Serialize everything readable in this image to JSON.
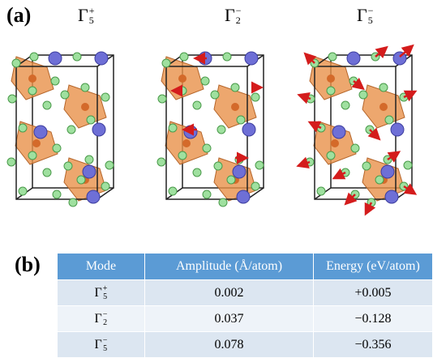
{
  "panel_a": {
    "label": "(a)",
    "modes": [
      {
        "symbol": "Γ",
        "sub": "5",
        "sup": "+"
      },
      {
        "symbol": "Γ",
        "sub": "2",
        "sup": "−"
      },
      {
        "symbol": "Γ",
        "sub": "5",
        "sup": "−"
      }
    ]
  },
  "panel_b": {
    "label": "(b)",
    "table": {
      "header": [
        "Mode",
        "Amplitude (Å/atom)",
        "Energy (eV/atom)"
      ],
      "rows": [
        {
          "mode": {
            "symbol": "Γ",
            "sub": "5",
            "sup": "+"
          },
          "amplitude": "0.002",
          "energy": "+0.005"
        },
        {
          "mode": {
            "symbol": "Γ",
            "sub": "2",
            "sup": "−"
          },
          "amplitude": "0.037",
          "energy": "−0.128"
        },
        {
          "mode": {
            "symbol": "Γ",
            "sub": "5",
            "sup": "−"
          },
          "amplitude": "0.078",
          "energy": "−0.356"
        }
      ]
    }
  }
}
